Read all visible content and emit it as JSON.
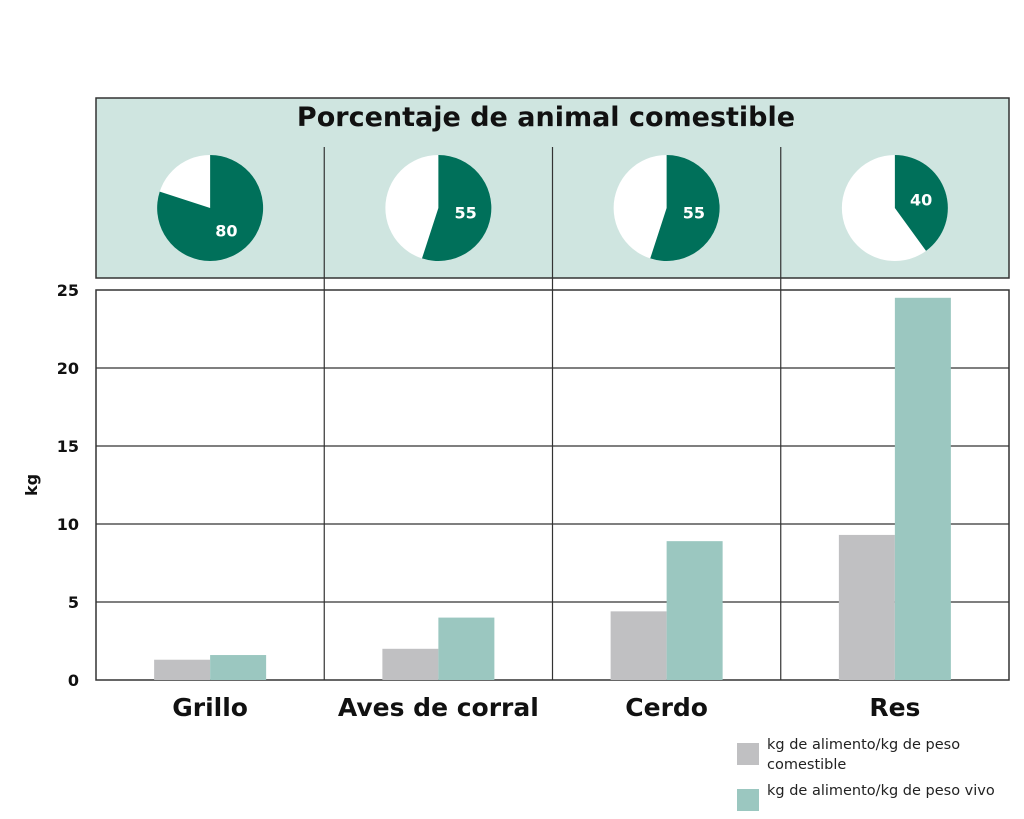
{
  "chart_data": {
    "type": "bar",
    "title": "Porcentaje de animal comestible",
    "ylabel": "kg",
    "xlabel": "",
    "ylim": [
      0,
      25
    ],
    "yticks": [
      0,
      5,
      10,
      15,
      20,
      25
    ],
    "grid": true,
    "categories": [
      "Grillo",
      "Aves de corral",
      "Cerdo",
      "Res"
    ],
    "series": [
      {
        "name": "kg de alimento/kg de peso comestible",
        "color": "#c0c0c2",
        "values": [
          1.3,
          2.0,
          4.4,
          9.3
        ]
      },
      {
        "name": "kg de alimento/kg de peso vivo",
        "color": "#9bc7c0",
        "values": [
          1.6,
          4.0,
          8.9,
          24.5
        ]
      }
    ],
    "edible_percent": [
      80,
      55,
      55,
      40
    ],
    "pie_color": "#00705a",
    "panel_color": "#cfe5e0",
    "legend_position": "bottom-right"
  }
}
